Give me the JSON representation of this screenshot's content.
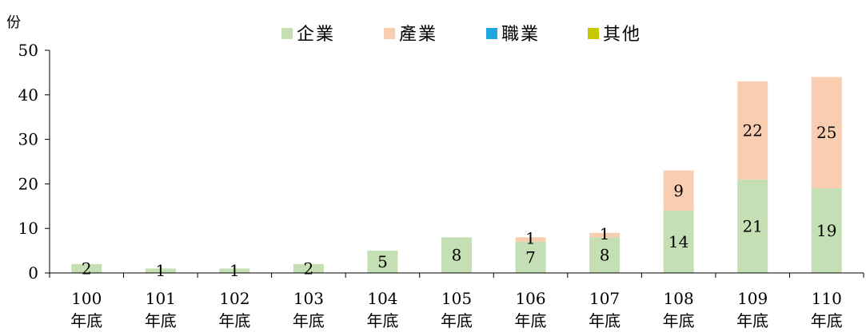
{
  "chart_data": {
    "type": "bar",
    "stacked": true,
    "y_unit": "份",
    "categories": [
      [
        "100",
        "年底"
      ],
      [
        "101",
        "年底"
      ],
      [
        "102",
        "年底"
      ],
      [
        "103",
        "年底"
      ],
      [
        "104",
        "年底"
      ],
      [
        "105",
        "年底"
      ],
      [
        "106",
        "年底"
      ],
      [
        "107",
        "年底"
      ],
      [
        "108",
        "年底"
      ],
      [
        "109",
        "年底"
      ],
      [
        "110",
        "年底"
      ]
    ],
    "series": [
      {
        "name": "企業",
        "color": "#c4dfb3",
        "values": [
          2,
          1,
          1,
          2,
          5,
          8,
          7,
          8,
          14,
          21,
          19
        ]
      },
      {
        "name": "產業",
        "color": "#f9cdb0",
        "values": [
          0,
          0,
          0,
          0,
          0,
          0,
          1,
          1,
          9,
          22,
          25
        ]
      },
      {
        "name": "職業",
        "color": "#1fa6e0",
        "values": [
          0,
          0,
          0,
          0,
          0,
          0,
          0,
          0,
          0,
          0,
          0
        ]
      },
      {
        "name": "其他",
        "color": "#c8c800",
        "values": [
          0,
          0,
          0,
          0,
          0,
          0,
          0,
          0,
          0,
          0,
          0
        ]
      }
    ],
    "ylim": [
      0,
      50
    ],
    "yticks": [
      0,
      10,
      20,
      30,
      40,
      50
    ],
    "legend_position": "top",
    "grid": false
  }
}
